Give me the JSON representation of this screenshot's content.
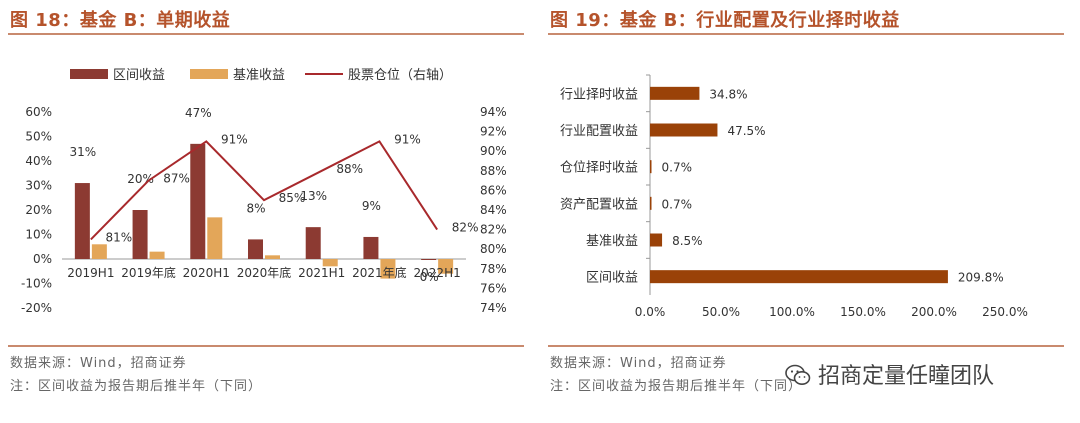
{
  "left": {
    "title": "图 18：基金 B：单期收益",
    "source": "数据来源：Wind，招商证券",
    "note": "注：区间收益为报告期后推半年（下同）"
  },
  "right": {
    "title": "图 19：基金 B：行业配置及行业择时收益",
    "source": "数据来源：Wind，招商证券",
    "note": "注：区间收益为报告期后推半年（下同）"
  },
  "watermark": "招商定量任瞳团队",
  "colors": {
    "bar_primary": "#8c3a32",
    "bar_secondary": "#e3a659",
    "line": "#a8292c",
    "hbar": "#9a4208",
    "accent": "#b5532b"
  },
  "chart_data": [
    {
      "type": "bar",
      "categories": [
        "2019H1",
        "2019年底",
        "2020H1",
        "2020年底",
        "2021H1",
        "2021年底",
        "2022H1"
      ],
      "series": [
        {
          "name": "区间收益",
          "values": [
            31,
            20,
            47,
            8,
            13,
            9,
            0
          ],
          "labels": [
            "31%",
            "20%",
            "47%",
            "8%",
            "13%",
            "9%",
            "0%"
          ]
        },
        {
          "name": "基准收益",
          "values": [
            6,
            3,
            17,
            1.5,
            -3,
            -8,
            -6
          ]
        },
        {
          "name": "股票仓位（右轴）",
          "type": "line",
          "axis": "right",
          "values": [
            81,
            87,
            91,
            85,
            88,
            91,
            82
          ],
          "labels": [
            "81%",
            "87%",
            "91%",
            "85%",
            "88%",
            "91%",
            "82%"
          ]
        }
      ],
      "ylim": [
        -20,
        60
      ],
      "yticks": [
        "-20%",
        "-10%",
        "0%",
        "10%",
        "20%",
        "30%",
        "40%",
        "50%",
        "60%"
      ],
      "y2lim": [
        74,
        94
      ],
      "y2ticks": [
        "74%",
        "76%",
        "78%",
        "80%",
        "82%",
        "84%",
        "86%",
        "88%",
        "90%",
        "92%",
        "94%"
      ],
      "legend": "top"
    },
    {
      "type": "bar",
      "orientation": "horizontal",
      "categories": [
        "行业择时收益",
        "行业配置收益",
        "仓位择时收益",
        "资产配置收益",
        "基准收益",
        "区间收益"
      ],
      "values": [
        34.8,
        47.5,
        0.7,
        0.7,
        8.5,
        209.8
      ],
      "labels": [
        "34.8%",
        "47.5%",
        "0.7%",
        "0.7%",
        "8.5%",
        "209.8%"
      ],
      "xlim": [
        0,
        250
      ],
      "xticks": [
        "0.0%",
        "50.0%",
        "100.0%",
        "150.0%",
        "200.0%",
        "250.0%"
      ]
    }
  ]
}
